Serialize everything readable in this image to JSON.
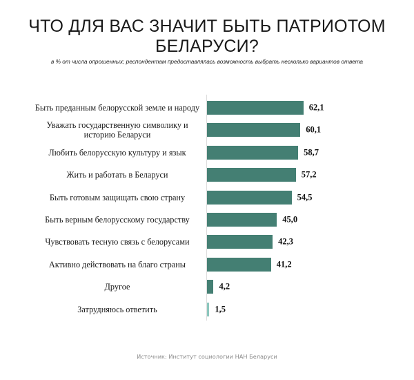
{
  "header": {
    "title_line1": "ЧТО ДЛЯ ВАС ЗНАЧИТ БЫТЬ ПАТРИОТОМ",
    "title_line2": "БЕЛАРУСИ?",
    "subtitle": "в % от числа опрошенных; респондентам предоставлялась возможность выбрать несколько вариантов ответа"
  },
  "footer": {
    "source": "Источник: Институт социологии НАН Беларуси"
  },
  "colors": {
    "bar": "#447f73",
    "bar_light": "#8cc6bd",
    "axis": "#dcdcdc"
  },
  "rows": [
    {
      "label": "Быть преданным белорусской земле и народу",
      "value": "62,1"
    },
    {
      "label": "Уважать государственную символику и историю Беларуси",
      "value": "60,1"
    },
    {
      "label": "Любить белорусскую культуру и язык",
      "value": "58,7"
    },
    {
      "label": "Жить и работать в Беларуси",
      "value": "57,2"
    },
    {
      "label": "Быть готовым защищать свою страну",
      "value": "54,5"
    },
    {
      "label": "Быть верным белорусскому государству",
      "value": "45,0"
    },
    {
      "label": "Чувствовать тесную связь с белорусами",
      "value": "42,3"
    },
    {
      "label": "Активно действовать на благо страны",
      "value": "41,2"
    },
    {
      "label": "Другое",
      "value": "4,2"
    },
    {
      "label": "Затрудняюсь ответить",
      "value": "1,5"
    }
  ],
  "chart_data": {
    "type": "bar",
    "orientation": "horizontal",
    "title": "ЧТО ДЛЯ ВАС ЗНАЧИТ БЫТЬ ПАТРИОТОМ БЕЛАРУСИ?",
    "subtitle": "в % от числа опрошенных; респондентам предоставлялась возможность выбрать несколько вариантов ответа",
    "categories": [
      "Быть преданным белорусской земле и народу",
      "Уважать государственную символику и историю Беларуси",
      "Любить белорусскую культуру и язык",
      "Жить и работать в Беларуси",
      "Быть готовым защищать свою страну",
      "Быть верным белорусскому государству",
      "Чувствовать тесную связь с белорусами",
      "Активно действовать на благо страны",
      "Другое",
      "Затрудняюсь ответить"
    ],
    "values": [
      62.1,
      60.1,
      58.7,
      57.2,
      54.5,
      45.0,
      42.3,
      41.2,
      4.2,
      1.5
    ],
    "xlabel": "",
    "ylabel": "",
    "unit": "%",
    "grid": false,
    "legend": null,
    "data_labels": true,
    "source": "Источник: Институт социологии НАН Беларуси"
  }
}
